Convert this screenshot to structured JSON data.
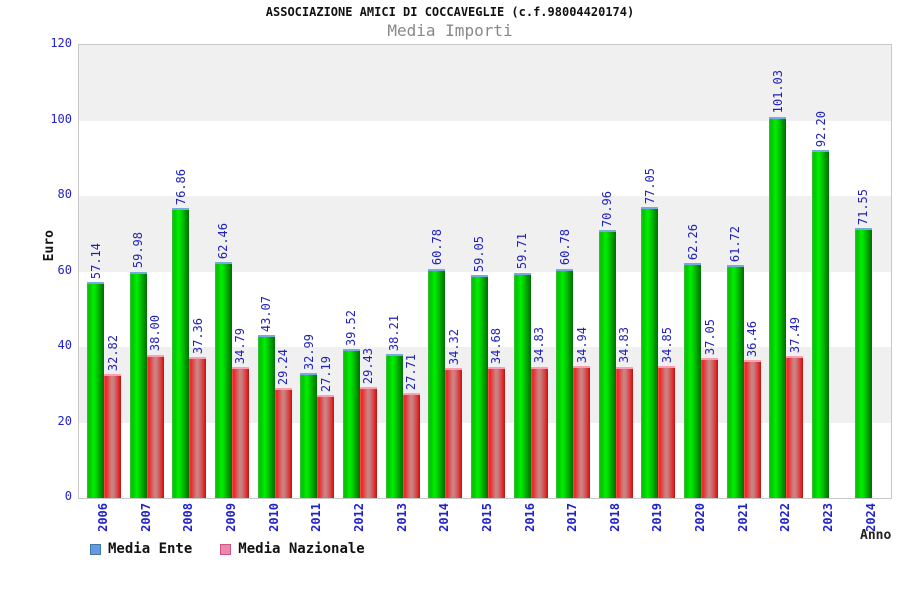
{
  "title": "ASSOCIAZIONE AMICI DI COCCAVEGLIE (c.f.98004420174)",
  "subtitle": "Media Importi",
  "y_axis_label": "Euro",
  "x_axis_label": "Anno",
  "legend": {
    "items": [
      {
        "label": "Media Ente",
        "swatch_color": "#6699dd",
        "swatch_border": "#4477aa"
      },
      {
        "label": "Media Nazionale",
        "swatch_color": "#ee88aa",
        "swatch_border": "#cc5588"
      }
    ]
  },
  "colors": {
    "bar_green": "#00cc00",
    "bar_red": "#dd3333",
    "axis_text_blue": "#2222cc",
    "band_gray": "#f0f0f0"
  },
  "chart_data": {
    "type": "bar",
    "title": "ASSOCIAZIONE AMICI DI COCCAVEGLIE (c.f.98004420174)",
    "subtitle": "Media Importi",
    "xlabel": "Anno",
    "ylabel": "Euro",
    "ylim": [
      0,
      120
    ],
    "yticks": [
      0,
      20,
      40,
      60,
      80,
      100,
      120
    ],
    "grid": "alternating-horizontal-bands",
    "legend_position": "bottom-left",
    "categories": [
      "2006",
      "2007",
      "2008",
      "2009",
      "2010",
      "2011",
      "2012",
      "2013",
      "2014",
      "2015",
      "2016",
      "2017",
      "2018",
      "2019",
      "2020",
      "2021",
      "2022",
      "2023",
      "2024"
    ],
    "series": [
      {
        "name": "Media Ente",
        "values": [
          57.14,
          59.98,
          76.86,
          62.46,
          43.07,
          32.99,
          39.52,
          38.21,
          60.78,
          59.05,
          59.71,
          60.78,
          70.96,
          77.05,
          62.26,
          61.72,
          101.03,
          92.2,
          71.55
        ]
      },
      {
        "name": "Media Nazionale",
        "values": [
          32.82,
          38.0,
          37.36,
          34.79,
          29.24,
          27.19,
          29.43,
          27.71,
          34.32,
          34.68,
          34.83,
          34.94,
          34.83,
          34.85,
          37.05,
          36.46,
          37.49,
          null,
          null
        ]
      }
    ]
  }
}
